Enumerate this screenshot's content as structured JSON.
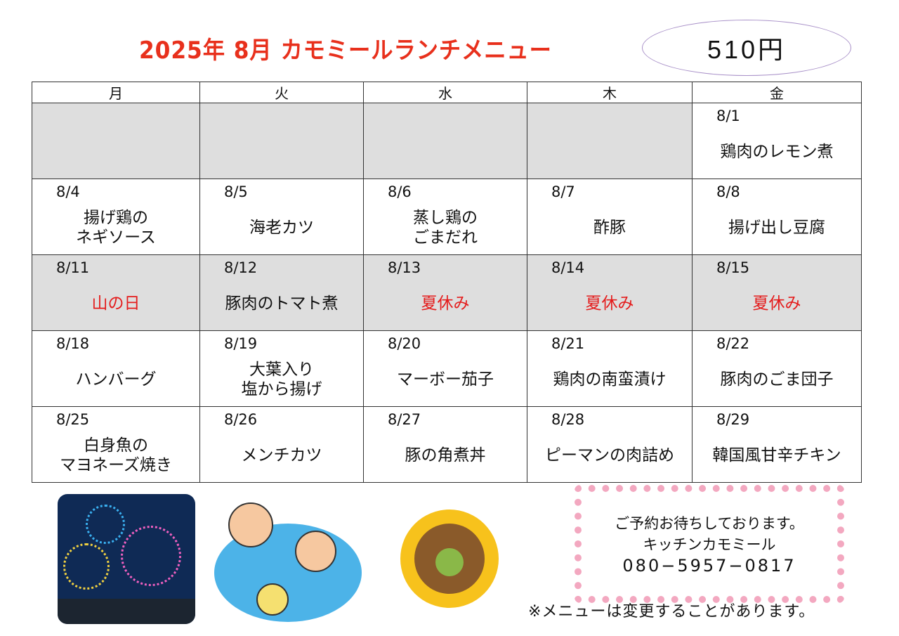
{
  "header": {
    "title": "2025年 8月 カモミールランチメニュー",
    "price": "510円"
  },
  "days": [
    "月",
    "火",
    "水",
    "木",
    "金"
  ],
  "weeks": [
    [
      {
        "date": "",
        "meal": "",
        "gray": true
      },
      {
        "date": "",
        "meal": "",
        "gray": true
      },
      {
        "date": "",
        "meal": "",
        "gray": true
      },
      {
        "date": "",
        "meal": "",
        "gray": true
      },
      {
        "date": "8/1",
        "meal": "鶏肉のレモン煮"
      }
    ],
    [
      {
        "date": "8/4",
        "meal": "揚げ鶏の\nネギソース"
      },
      {
        "date": "8/5",
        "meal": "海老カツ"
      },
      {
        "date": "8/6",
        "meal": "蒸し鶏の\nごまだれ"
      },
      {
        "date": "8/7",
        "meal": "酢豚"
      },
      {
        "date": "8/8",
        "meal": "揚げ出し豆腐"
      }
    ],
    [
      {
        "date": "8/11",
        "meal": "山の日",
        "holiday": true,
        "gray": true
      },
      {
        "date": "8/12",
        "meal": "豚肉のトマト煮",
        "gray": true
      },
      {
        "date": "8/13",
        "meal": "夏休み",
        "holiday": true,
        "gray": true
      },
      {
        "date": "8/14",
        "meal": "夏休み",
        "holiday": true,
        "gray": true
      },
      {
        "date": "8/15",
        "meal": "夏休み",
        "holiday": true,
        "gray": true
      }
    ],
    [
      {
        "date": "8/18",
        "meal": "ハンバーグ"
      },
      {
        "date": "8/19",
        "meal": "大葉入り\n塩から揚げ"
      },
      {
        "date": "8/20",
        "meal": "マーボー茄子"
      },
      {
        "date": "8/21",
        "meal": "鶏肉の南蛮漬け"
      },
      {
        "date": "8/22",
        "meal": "豚肉のごま団子"
      }
    ],
    [
      {
        "date": "8/25",
        "meal": "白身魚の\nマヨネーズ焼き"
      },
      {
        "date": "8/26",
        "meal": "メンチカツ"
      },
      {
        "date": "8/27",
        "meal": "豚の角煮丼"
      },
      {
        "date": "8/28",
        "meal": "ピーマンの肉詰め"
      },
      {
        "date": "8/29",
        "meal": "韓国風甘辛チキン"
      }
    ]
  ],
  "contact": {
    "line1": "ご予約お待ちしております。",
    "line2": "キッチンカモミール",
    "tel": "080−5957−0817"
  },
  "note": "※メニューは変更することがあります。",
  "colors": {
    "title": "#e8301c",
    "holiday": "#e41c1c",
    "gray_cell": "#dedede"
  }
}
